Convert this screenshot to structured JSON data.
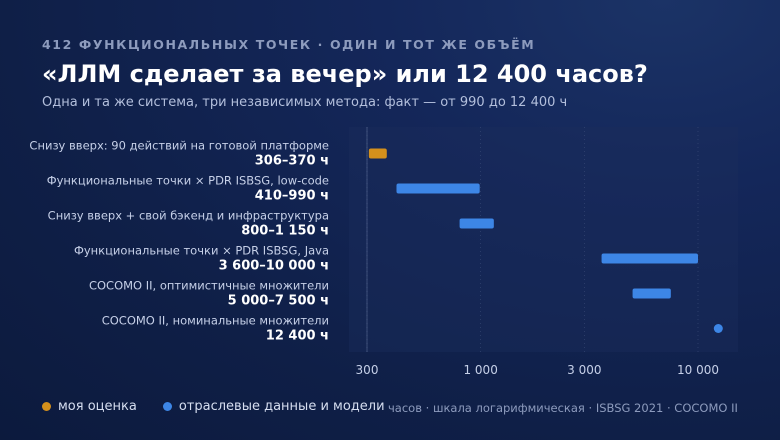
{
  "header": {
    "kicker": "412 ФУНКЦИОНАЛЬНЫХ ТОЧЕК · ОДИН И ТОТ ЖЕ ОБЪЁМ",
    "title": "«ЛЛМ сделает за вечер» или 12 400 часов?",
    "subtitle": "Одна и та же система, три независимых метода: факт — от 990 до 12 400 ч"
  },
  "legend": {
    "items": [
      {
        "label": "моя оценка",
        "color": "#d4901c"
      },
      {
        "label": "отраслевые данные и модели",
        "color": "#3d86e6"
      }
    ],
    "note": "часов · шкала логарифмическая · ISBSG 2021 · COCOMO II"
  },
  "chart_data": {
    "type": "bar",
    "orientation": "horizontal-range",
    "x_scale": "log",
    "xlim": [
      270,
      13000
    ],
    "x_ticks": [
      300,
      1000,
      3000,
      10000
    ],
    "x_tick_labels": [
      "300",
      "1 000",
      "3 000",
      "10 000"
    ],
    "colors": {
      "own": "#d4901c",
      "industry": "#3d86e6"
    },
    "rows": [
      {
        "label": "Снизу вверх: 90 действий на готовой платформе",
        "value_label": "306–370 ч",
        "low": 306,
        "high": 370,
        "group": "own"
      },
      {
        "label": "Функциональные точки × PDR ISBSG, low-code",
        "value_label": "410–990 ч",
        "low": 410,
        "high": 990,
        "group": "industry"
      },
      {
        "label": "Снизу вверх + свой бэкенд и инфраструктура",
        "value_label": "800–1 150 ч",
        "low": 800,
        "high": 1150,
        "group": "industry"
      },
      {
        "label": "Функциональные точки × PDR ISBSG, Java",
        "value_label": "3 600–10 000 ч",
        "low": 3600,
        "high": 10000,
        "group": "industry"
      },
      {
        "label": "COCOMO II, оптимистичные множители",
        "value_label": "5 000–7 500 ч",
        "low": 5000,
        "high": 7500,
        "group": "industry"
      },
      {
        "label": "COCOMO II, номинальные множители",
        "value_label": "12 400 ч",
        "low": 12400,
        "high": 12400,
        "group": "industry"
      }
    ]
  }
}
